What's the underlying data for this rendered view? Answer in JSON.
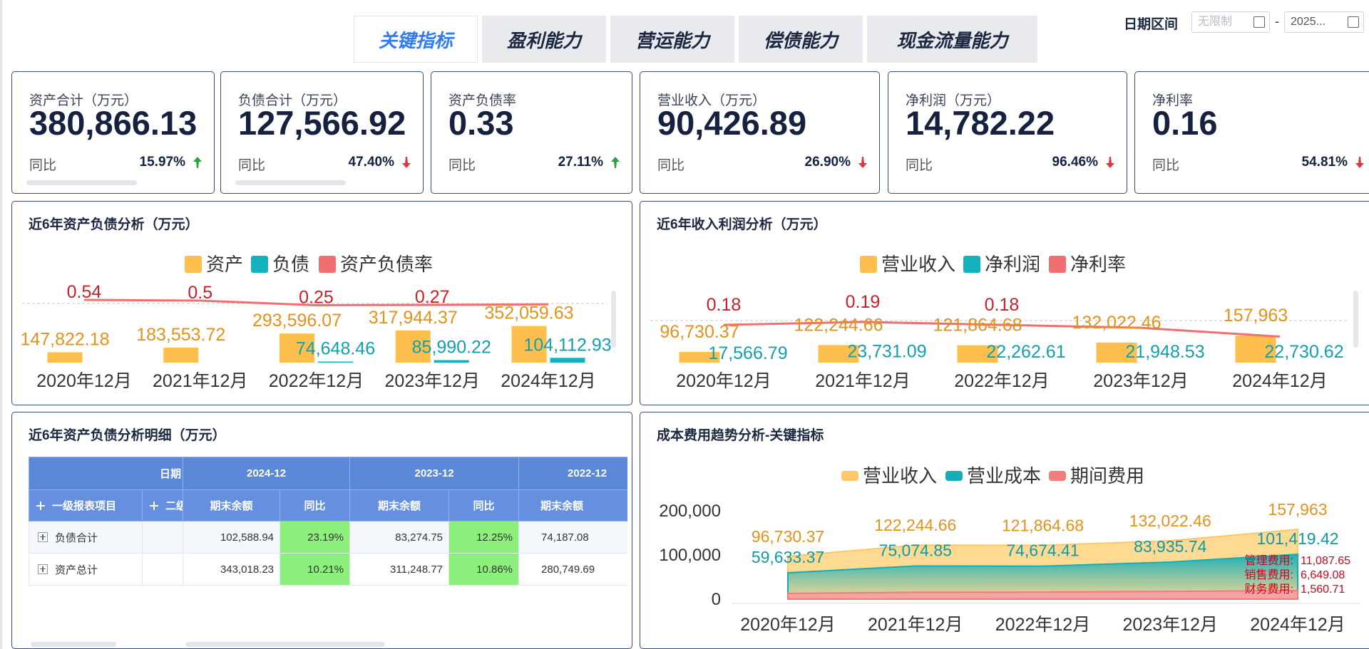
{
  "tabs": [
    "关键指标",
    "盈利能力",
    "营运能力",
    "偿债能力",
    "现金流量能力"
  ],
  "date_filter": {
    "label": "日期区间",
    "start": "无限制",
    "separator": "-",
    "end": "2025..."
  },
  "kpis": [
    {
      "label": "资产合计（万元）",
      "value": "380,866.13",
      "yoy_label": "同比",
      "yoy": "15.97%",
      "trend": "up"
    },
    {
      "label": "负债合计（万元）",
      "value": "127,566.92",
      "yoy_label": "同比",
      "yoy": "47.40%",
      "trend": "down"
    },
    {
      "label": "资产负债率",
      "value": "0.33",
      "yoy_label": "同比",
      "yoy": "27.11%",
      "trend": "up"
    },
    {
      "label": "营业收入（万元）",
      "value": "90,426.89",
      "yoy_label": "同比",
      "yoy": "26.90%",
      "trend": "down"
    },
    {
      "label": "净利润（万元）",
      "value": "14,782.22",
      "yoy_label": "同比",
      "yoy": "96.46%",
      "trend": "down"
    },
    {
      "label": "净利率",
      "value": "0.16",
      "yoy_label": "同比",
      "yoy": "54.81%",
      "trend": "down"
    }
  ],
  "charts": [
    {
      "type": "bar_line",
      "title": "近6年资产负债分析（万元）",
      "categories": [
        "2020年12月",
        "2021年12月",
        "2022年12月",
        "2023年12月",
        "2024年12月"
      ],
      "series": [
        {
          "name": "资产",
          "type": "bar",
          "color": "#ffbf4d",
          "label_color": "#e3921a",
          "values": [
            147822.18,
            183553.72,
            293596.07,
            317944.37,
            352059.63
          ],
          "value_labels": [
            "147,822.18",
            "183,553.72",
            "293,596.07",
            "317,944.37",
            "352,059.63"
          ]
        },
        {
          "name": "负债",
          "type": "bar",
          "color": "#14b1bf",
          "label_color": "#12a0ad",
          "values": [
            null,
            null,
            74648.46,
            85990.22,
            104112.93
          ],
          "value_labels": [
            null,
            null,
            "74,648.46",
            "85,990.22",
            "104,112.93"
          ]
        },
        {
          "name": "资产负债率",
          "type": "line",
          "color": "#f07070",
          "label_color": "#cc1f2a",
          "values": [
            0.54,
            0.5,
            0.25,
            0.27,
            0.3
          ],
          "value_labels": [
            "0.54",
            "0.5",
            "0.25",
            "0.27",
            null
          ]
        }
      ]
    },
    {
      "type": "bar_line",
      "title": "近6年收入利润分析（万元）",
      "categories": [
        "2020年12月",
        "2021年12月",
        "2022年12月",
        "2023年12月",
        "2024年12月"
      ],
      "series": [
        {
          "name": "营业收入",
          "type": "bar",
          "color": "#ffbf4d",
          "label_color": "#e3921a",
          "values": [
            96730.37,
            122244.66,
            121864.68,
            132022.46,
            157963
          ],
          "value_labels": [
            "96,730.37",
            "122,244.66",
            "121,864.68",
            "132,022.46",
            "157,963"
          ]
        },
        {
          "name": "净利润",
          "type": "bar",
          "color": "#14b1bf",
          "label_color": "#12a0ad",
          "values": [
            17566.79,
            23731.09,
            22262.61,
            21948.53,
            22730.62
          ],
          "value_labels": [
            "17,566.79",
            "23,731.09",
            "22,262.61",
            "21,948.53",
            "22,730.62"
          ]
        },
        {
          "name": "净利率",
          "type": "line",
          "color": "#f07070",
          "label_color": "#cc1f2a",
          "values": [
            0.18,
            0.19,
            0.18,
            0.17,
            0.14
          ],
          "value_labels": [
            "0.18",
            "0.19",
            "0.18",
            null,
            null
          ]
        }
      ]
    },
    {
      "type": "area",
      "title": "成本费用趋势分析-关键指标",
      "categories": [
        "2020年12月",
        "2021年12月",
        "2022年12月",
        "2023年12月",
        "2024年12月"
      ],
      "ylim": [
        0,
        200000
      ],
      "yticks": [
        0,
        {
          "value": 100000,
          "label": "100,000"
        },
        {
          "value": 200000,
          "label": "200,000"
        }
      ],
      "series": [
        {
          "name": "营业收入",
          "color": "#ffc766",
          "label_color": "#e3921a",
          "values": [
            96730.37,
            122244.66,
            121864.68,
            132022.46,
            157963
          ],
          "value_labels": [
            "96,730.37",
            "122,244.66",
            "121,864.68",
            "132,022.46",
            "157,963"
          ]
        },
        {
          "name": "营业成本",
          "color": "#15aeb8",
          "label_color": "#0f9aa6",
          "values": [
            59633.37,
            75074.85,
            74674.41,
            83935.74,
            101419.42
          ],
          "value_labels": [
            "59,633.37",
            "75,074.85",
            "74,674.41",
            "83,935.74",
            "101,419.42"
          ]
        },
        {
          "name": "期间费用",
          "color": "#f07c7c",
          "values": [
            13000,
            15500,
            16000,
            17500,
            19297.44
          ]
        }
      ],
      "annotation": {
        "items": [
          {
            "name": "管理费用:",
            "value": "11,087.65"
          },
          {
            "name": "销售费用:",
            "value": "6,649.08"
          },
          {
            "name": "财务费用:",
            "value": "1,560.71"
          }
        ]
      }
    }
  ],
  "table": {
    "title": "近6年资产负债分析明细（万元）",
    "date_label": "日期",
    "periods": [
      "2024-12",
      "2023-12",
      "2022-12"
    ],
    "columns": [
      "一级报表项目",
      "二级报表项目",
      "期末余额",
      "同比",
      "期末余额",
      "同比",
      "期末余额"
    ],
    "rows": [
      [
        "负债合计",
        "102,588.94",
        "23.19%",
        "83,274.75",
        "12.25%",
        "74,187.08"
      ],
      [
        "资产总计",
        "343,018.23",
        "10.21%",
        "311,248.77",
        "10.86%",
        "280,749.69"
      ]
    ]
  }
}
